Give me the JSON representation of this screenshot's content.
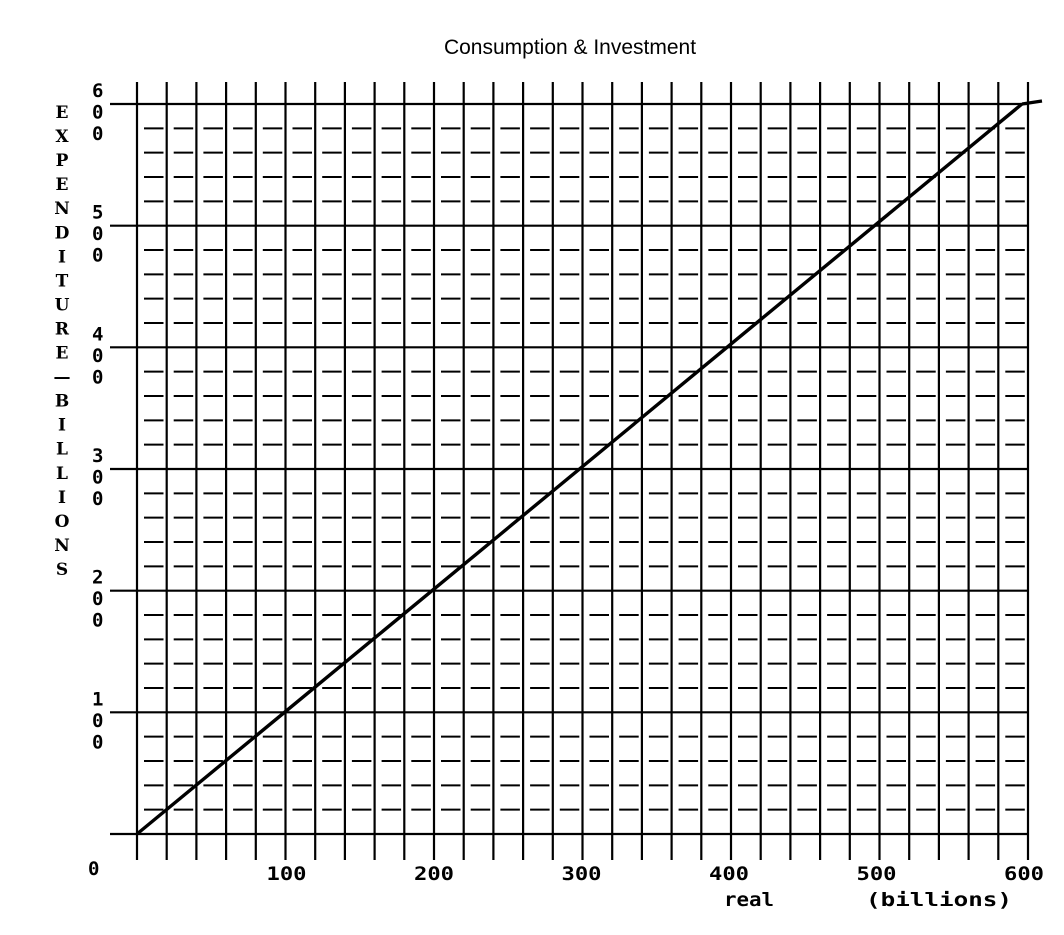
{
  "chart_data": {
    "type": "line",
    "title": "Consumption & Investment",
    "ylabel": "EXPENDITURE-BILLIONS",
    "xlabel_left": "real",
    "xlabel_right": "(billions)",
    "origin_label": "0",
    "xlim": [
      0,
      600
    ],
    "ylim": [
      0,
      600
    ],
    "x_ticks": [
      "100",
      "200",
      "300",
      "400",
      "500",
      "600"
    ],
    "y_ticks": [
      "600",
      "500",
      "400",
      "300",
      "200",
      "100"
    ],
    "grid": true,
    "series": [
      {
        "x": [
          0,
          600
        ],
        "y": [
          0,
          600
        ]
      }
    ]
  }
}
